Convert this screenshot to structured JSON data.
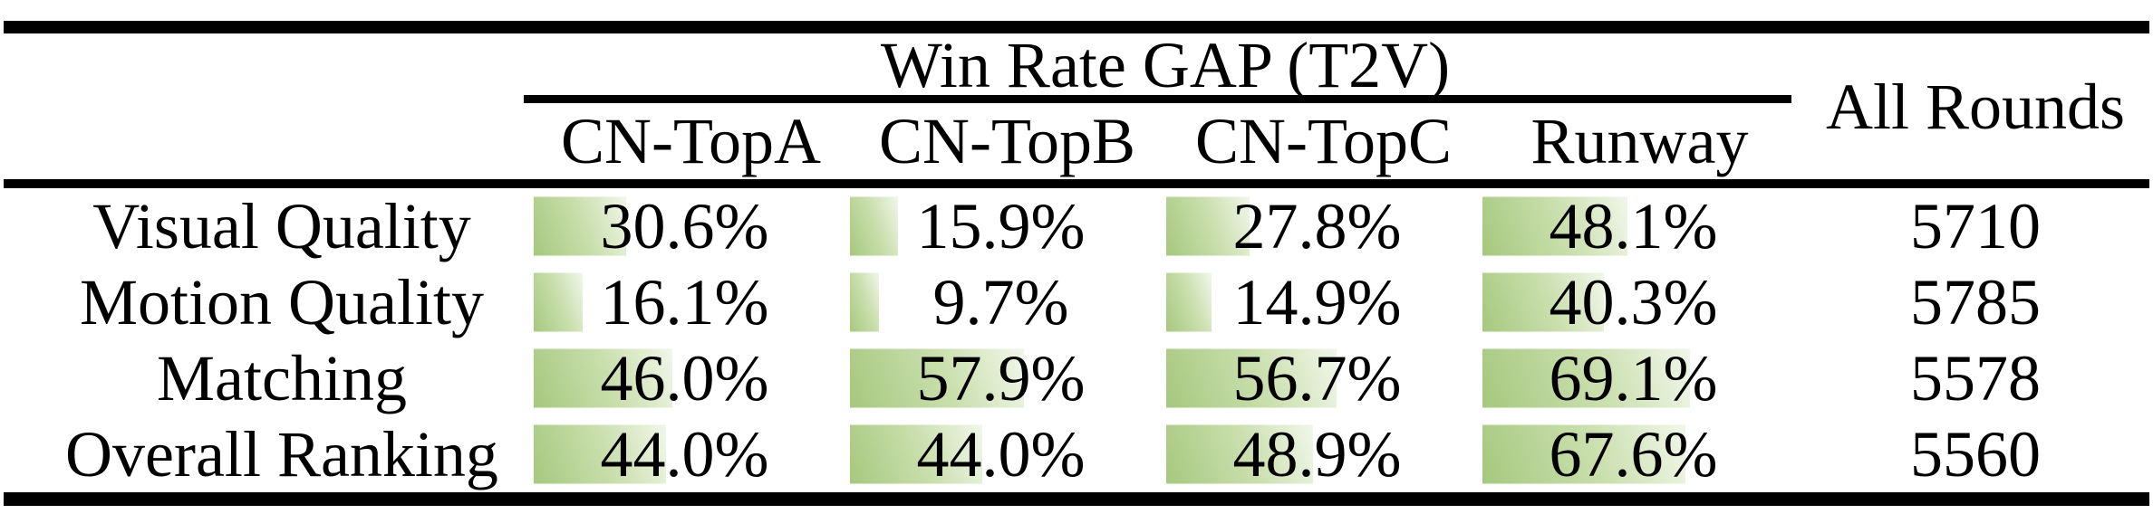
{
  "table": {
    "group_header": "Win Rate GAP (T2V)",
    "all_rounds_header": "All Rounds",
    "columns": [
      "CN-TopA",
      "CN-TopB",
      "CN-TopC",
      "Runway"
    ],
    "rows": [
      {
        "label": "Visual Quality",
        "values": [
          {
            "pct": 30.6,
            "text": "30.6%"
          },
          {
            "pct": 15.9,
            "text": "15.9%"
          },
          {
            "pct": 27.8,
            "text": "27.8%"
          },
          {
            "pct": 48.1,
            "text": "48.1%"
          }
        ],
        "all_rounds": "5710"
      },
      {
        "label": "Motion Quality",
        "values": [
          {
            "pct": 16.1,
            "text": "16.1%"
          },
          {
            "pct": 9.7,
            "text": "9.7%"
          },
          {
            "pct": 14.9,
            "text": "14.9%"
          },
          {
            "pct": 40.3,
            "text": "40.3%"
          }
        ],
        "all_rounds": "5785"
      },
      {
        "label": "Matching",
        "values": [
          {
            "pct": 46.0,
            "text": "46.0%"
          },
          {
            "pct": 57.9,
            "text": "57.9%"
          },
          {
            "pct": 56.7,
            "text": "56.7%"
          },
          {
            "pct": 69.1,
            "text": "69.1%"
          }
        ],
        "all_rounds": "5578"
      },
      {
        "label": "Overall Ranking",
        "values": [
          {
            "pct": 44.0,
            "text": "44.0%"
          },
          {
            "pct": 44.0,
            "text": "44.0%"
          },
          {
            "pct": 48.9,
            "text": "48.9%"
          },
          {
            "pct": 67.6,
            "text": "67.6%"
          }
        ],
        "all_rounds": "5560"
      }
    ]
  },
  "colors": {
    "bar_green": "#a6c87e",
    "bar_mid": "#cadfae",
    "bar_fade": "#f1f7ea",
    "rule_black": "#000000",
    "text_black": "#000000",
    "background": "#ffffff"
  },
  "chart_data": {
    "type": "table",
    "title": "Win Rate GAP (T2V)",
    "columns": [
      "CN-TopA",
      "CN-TopB",
      "CN-TopC",
      "Runway",
      "All Rounds"
    ],
    "categories": [
      "Visual Quality",
      "Motion Quality",
      "Matching",
      "Overall Ranking"
    ],
    "series": [
      {
        "name": "CN-TopA",
        "values": [
          30.6,
          16.1,
          46.0,
          44.0
        ],
        "unit": "%"
      },
      {
        "name": "CN-TopB",
        "values": [
          15.9,
          9.7,
          57.9,
          44.0
        ],
        "unit": "%"
      },
      {
        "name": "CN-TopC",
        "values": [
          27.8,
          14.9,
          56.7,
          48.9
        ],
        "unit": "%"
      },
      {
        "name": "Runway",
        "values": [
          48.1,
          40.3,
          69.1,
          67.6
        ],
        "unit": "%"
      },
      {
        "name": "All Rounds",
        "values": [
          5710,
          5785,
          5578,
          5560
        ],
        "unit": "rounds"
      }
    ],
    "bar_range": [
      0,
      100
    ],
    "layout": "data bars fill each percentage cell from the left, width proportional to value (100% = full column width)"
  }
}
